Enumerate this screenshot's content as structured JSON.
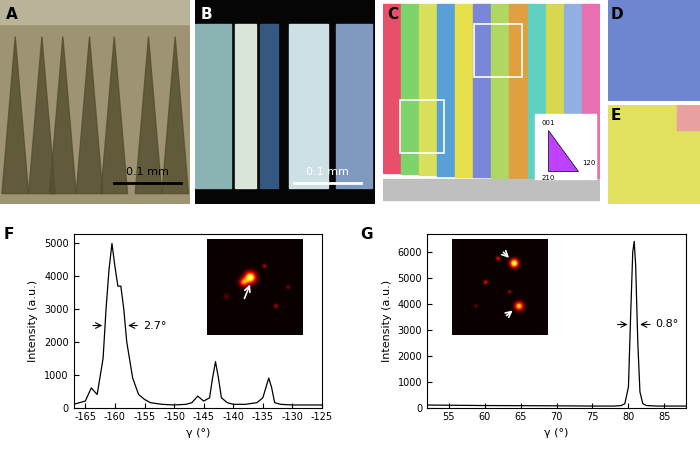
{
  "panels": {
    "A": {
      "label": "A",
      "scale_bar": "0.1 mm"
    },
    "B": {
      "label": "B",
      "scale_bar": "0.1 mm"
    },
    "C": {
      "label": "C",
      "color_key": [
        "001",
        "120",
        "210"
      ]
    },
    "D": {
      "label": "D"
    },
    "E": {
      "label": "E"
    }
  },
  "chart_data": [
    {
      "type": "line",
      "label": "F",
      "color": "#000000",
      "x": [
        -167,
        -165,
        -164,
        -163,
        -162,
        -161.5,
        -161,
        -160.5,
        -160,
        -159.5,
        -159,
        -158.5,
        -158,
        -157,
        -156,
        -155,
        -154,
        -152,
        -150,
        -148,
        -147,
        -146,
        -145,
        -144,
        -143.5,
        -143,
        -142.5,
        -142,
        -141,
        -140,
        -138,
        -136,
        -135,
        -134,
        -133.5,
        -133,
        -132,
        -130,
        -128,
        -125
      ],
      "values": [
        100,
        200,
        600,
        400,
        1500,
        3000,
        4200,
        5000,
        4300,
        3700,
        3700,
        3000,
        2000,
        900,
        400,
        250,
        150,
        100,
        80,
        100,
        150,
        350,
        200,
        300,
        900,
        1400,
        900,
        300,
        150,
        100,
        100,
        150,
        300,
        900,
        600,
        150,
        100,
        80,
        80,
        80
      ],
      "xlim": [
        -167,
        -125
      ],
      "xticks": [
        -165,
        -160,
        -155,
        -150,
        -145,
        -140,
        -135,
        -130,
        -125
      ],
      "ylim": [
        0,
        5300
      ],
      "yticks": [
        0,
        1000,
        2000,
        3000,
        4000,
        5000
      ],
      "x_label": "γ (°)",
      "y_label": "Intensity (a.u.)",
      "annotation": "2.7°"
    },
    {
      "type": "line",
      "label": "G",
      "color": "#000000",
      "x": [
        52,
        60,
        70,
        75,
        78,
        79,
        79.5,
        80,
        80.3,
        80.6,
        80.8,
        81,
        81.3,
        81.6,
        82,
        82.5,
        84,
        86,
        88
      ],
      "values": [
        100,
        80,
        70,
        60,
        60,
        80,
        150,
        800,
        3500,
        6000,
        6400,
        5500,
        2500,
        600,
        150,
        80,
        60,
        60,
        60
      ],
      "xlim": [
        52,
        88
      ],
      "xticks": [
        55,
        60,
        65,
        70,
        75,
        80,
        85
      ],
      "ylim": [
        0,
        6700
      ],
      "yticks": [
        0,
        1000,
        2000,
        3000,
        4000,
        5000,
        6000
      ],
      "x_label": "γ (°)",
      "y_label": "Intensity (a.u.)",
      "annotation": "0.8°"
    }
  ]
}
